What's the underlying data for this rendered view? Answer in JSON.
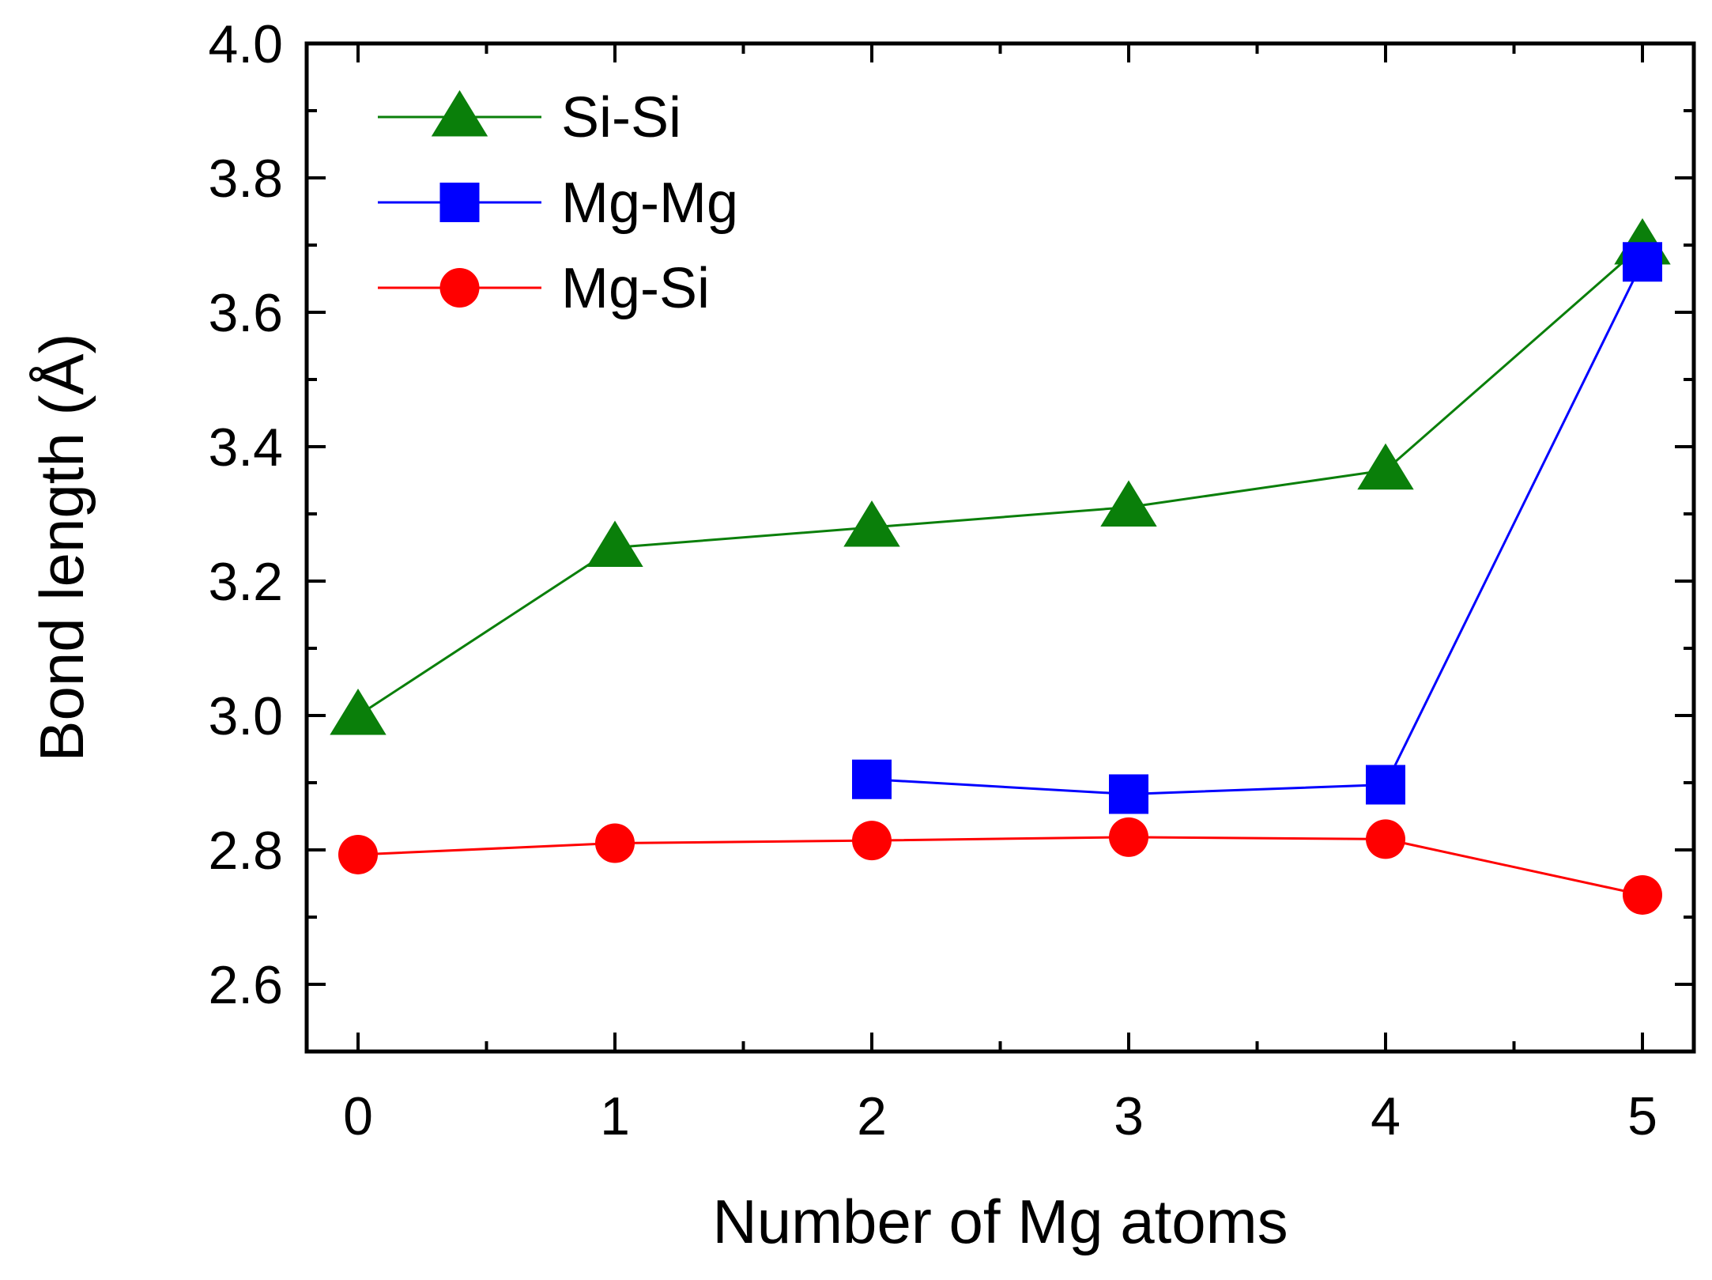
{
  "chart_data": {
    "type": "line",
    "title": "",
    "xlabel": "Number of Mg atoms",
    "ylabel": "Bond length (Å)",
    "xlim": [
      -0.2,
      5.2
    ],
    "ylim": [
      2.5,
      4.0
    ],
    "xticks": [
      0,
      1,
      2,
      3,
      4,
      5
    ],
    "xtick_labels": [
      "0",
      "1",
      "2",
      "3",
      "4",
      "5"
    ],
    "yticks": [
      2.6,
      2.8,
      3.0,
      3.2,
      3.4,
      3.6,
      3.8,
      4.0
    ],
    "ytick_labels": [
      "2.6",
      "2.8",
      "3.0",
      "3.2",
      "3.4",
      "3.6",
      "3.8",
      "4.0"
    ],
    "grid": false,
    "legend_position": "top-left",
    "series": [
      {
        "name": "Si-Si",
        "color": "#0a7f0a",
        "marker": "triangle",
        "x": [
          0,
          1,
          2,
          3,
          4,
          5
        ],
        "values": [
          3.0,
          3.25,
          3.28,
          3.31,
          3.365,
          3.7
        ]
      },
      {
        "name": "Mg-Mg",
        "color": "#0000ff",
        "marker": "square",
        "x": [
          2,
          3,
          4,
          5
        ],
        "values": [
          2.905,
          2.883,
          2.897,
          3.675
        ]
      },
      {
        "name": "Mg-Si",
        "color": "#ff0000",
        "marker": "circle",
        "x": [
          0,
          1,
          2,
          3,
          4,
          5
        ],
        "values": [
          2.793,
          2.81,
          2.814,
          2.819,
          2.816,
          2.733
        ]
      }
    ]
  }
}
